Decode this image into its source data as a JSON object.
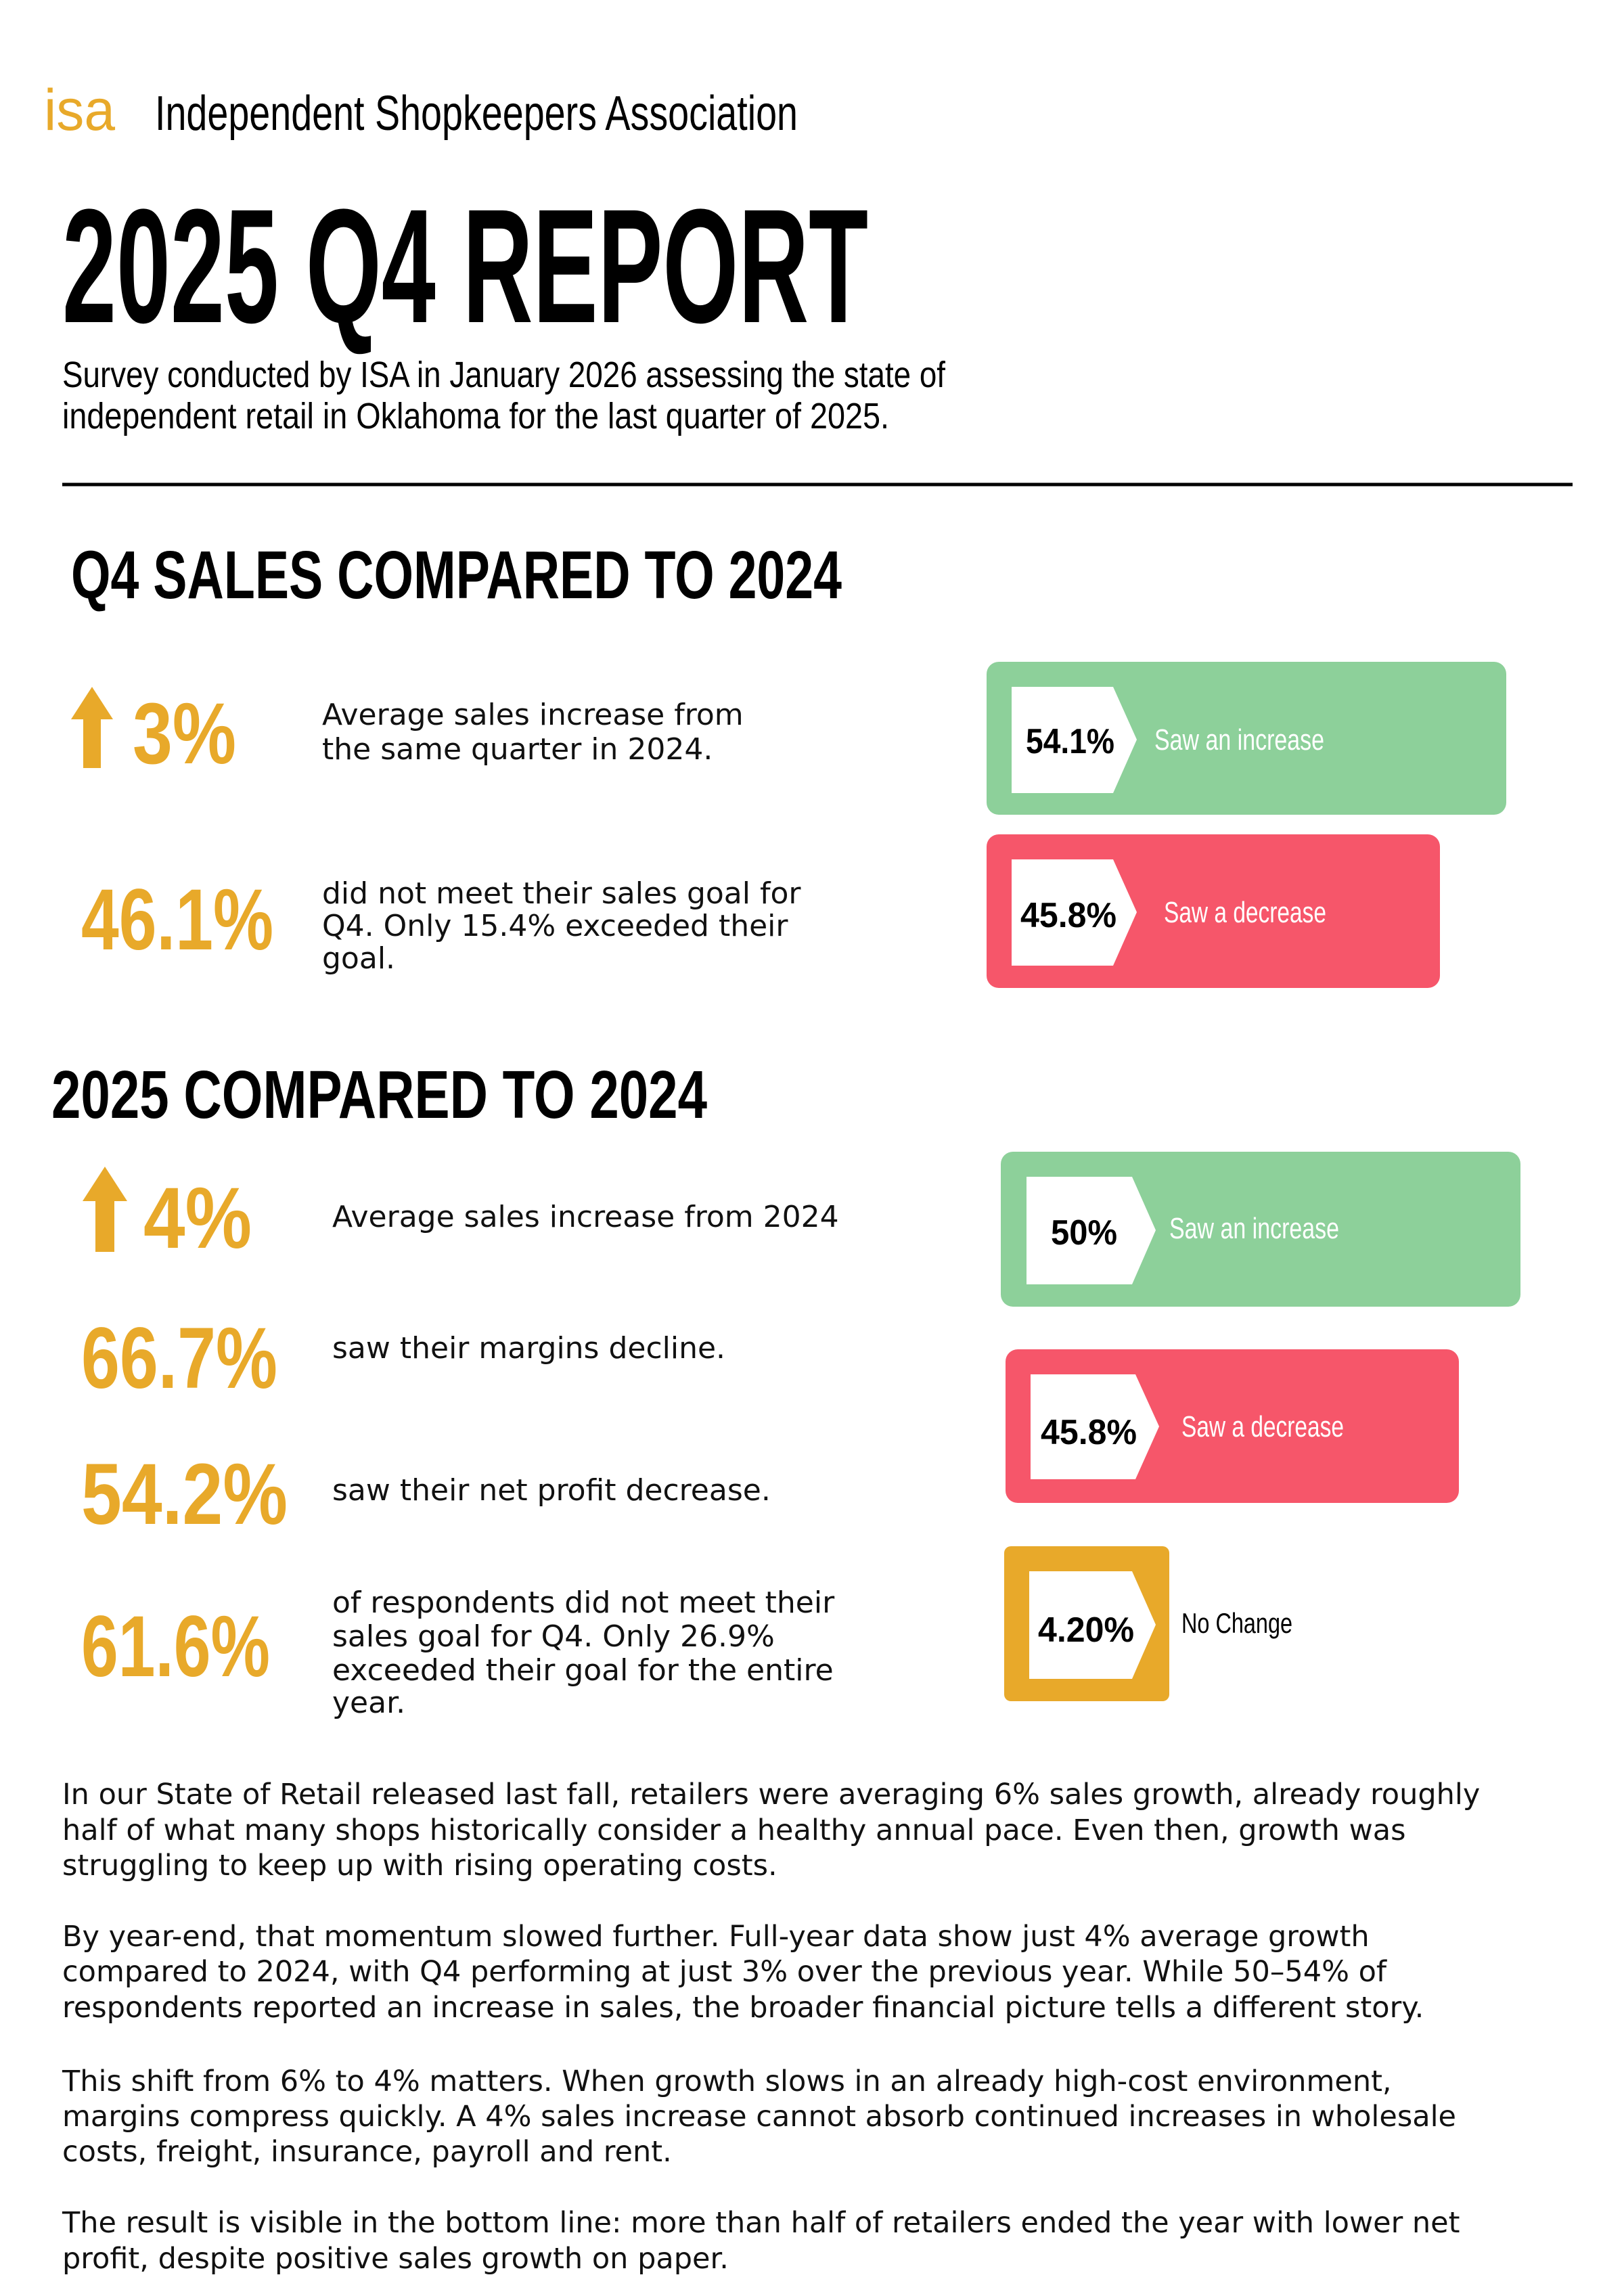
{
  "header": {
    "logo": "isa",
    "organization": "Independent Shopkeepers Association",
    "title": "2025 Q4 REPORT",
    "subtitle": [
      "Survey conducted by ISA in January 2026 assessing the state of",
      "independent retail in Oklahoma for the last quarter of 2025."
    ]
  },
  "sections": [
    {
      "heading": "Q4 SALES COMPARED TO 2024",
      "stats": [
        {
          "value": "3%",
          "description": [
            "Average sales increase from",
            "the same quarter in 2024."
          ]
        },
        {
          "value": "46.1%",
          "description": [
            "did not meet their sales goal for",
            "Q4. Only 15.4% exceeded their",
            "goal."
          ]
        }
      ],
      "bars": [
        {
          "value": "54.1%",
          "label": "Saw an increase"
        },
        {
          "value": "45.8%",
          "label": "Saw a decrease"
        }
      ]
    },
    {
      "heading": "2025 COMPARED TO 2024",
      "stats": [
        {
          "value": "4%",
          "description": [
            "Average sales increase from 2024"
          ]
        },
        {
          "value": "66.7%",
          "description": [
            "saw their margins decline."
          ]
        },
        {
          "value": "54.2%",
          "description": [
            "saw their net profit decrease."
          ]
        },
        {
          "value": "61.6%",
          "description": [
            "of respondents did not meet their",
            "sales goal for Q4. Only 26.9%",
            "exceeded their goal for the entire",
            "year."
          ]
        }
      ],
      "bars": [
        {
          "value": "50%",
          "label": "Saw an increase"
        },
        {
          "value": "45.8%",
          "label": "Saw a decrease"
        },
        {
          "value": "4.20%",
          "label": "No Change"
        }
      ]
    }
  ],
  "body": [
    [
      "In our State of Retail released last fall, retailers were averaging 6% sales growth, already roughly",
      "half of what many shops historically consider a healthy annual pace. Even then, growth was",
      "struggling to keep up with rising operating costs."
    ],
    [
      "By year-end, that momentum slowed further. Full-year data show just 4% average growth",
      "compared to 2024, with Q4 performing at just 3% over the previous year. While 50–54% of",
      "respondents reported an increase in sales, the broader financial picture tells a different story."
    ],
    [
      "This shift from 6% to 4% matters. When growth slows in an already high-cost environment,",
      "margins compress quickly. A 4% sales increase cannot absorb continued increases in wholesale",
      "costs, freight, insurance, payroll and rent."
    ],
    [
      "The result is visible in the bottom line: more than half of retailers ended the year with lower net",
      "profit, despite positive sales growth on paper."
    ]
  ]
}
